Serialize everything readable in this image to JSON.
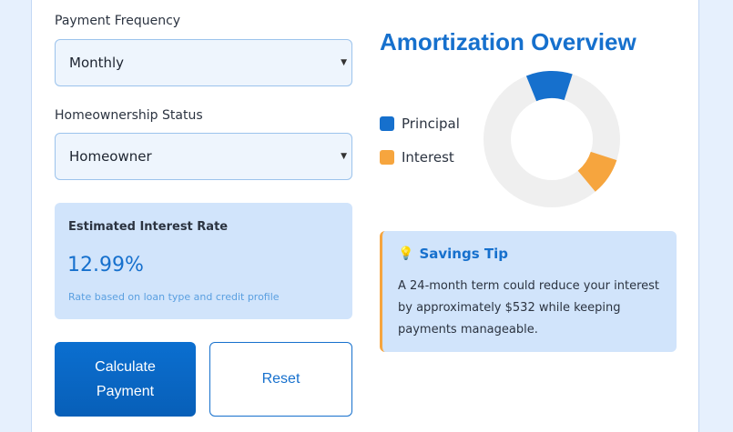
{
  "form": {
    "payment_frequency": {
      "label": "Payment Frequency",
      "value": "Monthly"
    },
    "homeownership_status": {
      "label": "Homeownership Status",
      "value": "Homeowner"
    }
  },
  "rate": {
    "title": "Estimated Interest Rate",
    "value": "12.99%",
    "note": "Rate based on loan type and credit profile"
  },
  "buttons": {
    "calculate_label": "Calculate Payment",
    "reset_label": "Reset"
  },
  "overview": {
    "title": "Amortization Overview",
    "legend": [
      {
        "label": "Principal",
        "color": "#1670cd"
      },
      {
        "label": "Interest",
        "color": "#f6a53e"
      }
    ]
  },
  "chart_data": {
    "type": "pie",
    "donut": true,
    "categories": [
      "Principal",
      "Interest"
    ],
    "values": [
      11,
      9
    ],
    "remainder": 80,
    "colors": {
      "Principal": "#1670cd",
      "Interest": "#f6a53e",
      "remainder": "#efefef"
    },
    "legend_placement": "left"
  },
  "tip": {
    "icon": "lightbulb-icon",
    "title": "Savings Tip",
    "text": "A 24-month term could reduce your interest by approximately $532 while keeping payments manageable."
  }
}
